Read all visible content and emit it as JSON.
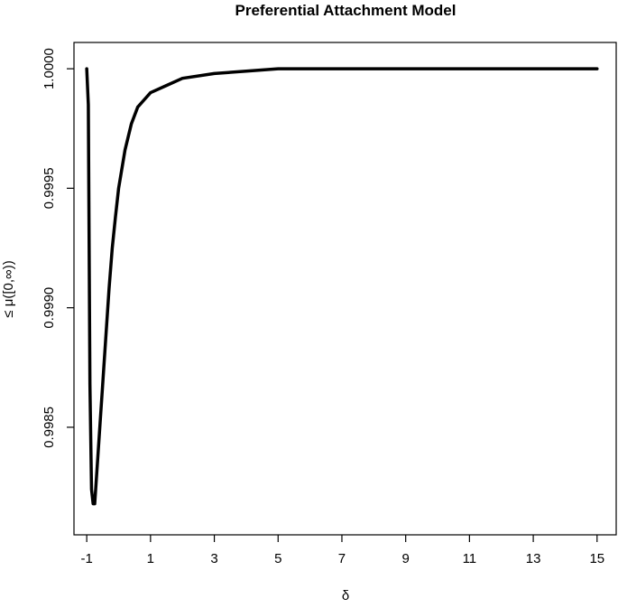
{
  "chart_data": {
    "type": "line",
    "title": "Preferential Attachment Model",
    "xlabel": "δ",
    "ylabel": "≤ μ([0,∞))",
    "xlim": [
      -1.4,
      15.6
    ],
    "ylim": [
      0.99805,
      1.00011
    ],
    "x_ticks": [
      -1,
      1,
      3,
      5,
      7,
      9,
      11,
      13,
      15
    ],
    "x_tick_labels": [
      "-1",
      "1",
      "3",
      "5",
      "7",
      "9",
      "11",
      "13",
      "15"
    ],
    "y_ticks": [
      0.9985,
      0.999,
      0.9995,
      1.0
    ],
    "y_tick_labels": [
      "0.9985",
      "0.9990",
      "0.9995",
      "1.0000"
    ],
    "grid": false,
    "legend": "none",
    "line_color": "#000000",
    "series": [
      {
        "x": [
          -1.0,
          -0.95,
          -0.9,
          -0.85,
          -0.8,
          -0.75,
          -0.7,
          -0.6,
          -0.5,
          -0.4,
          -0.3,
          -0.2,
          -0.1,
          0.0,
          0.2,
          0.4,
          0.6,
          0.8,
          1.0,
          1.5,
          2.0,
          3.0,
          4.0,
          5.0,
          7.0,
          9.0,
          11.0,
          13.0,
          15.0
        ],
        "y": [
          1.0,
          0.99985,
          0.99868,
          0.99824,
          0.99818,
          0.99818,
          0.99828,
          0.99848,
          0.99868,
          0.99888,
          0.99908,
          0.99925,
          0.99938,
          0.9995,
          0.99966,
          0.99977,
          0.99984,
          0.99987,
          0.9999,
          0.99993,
          0.99996,
          0.99998,
          0.99999,
          1.0,
          1.0,
          1.0,
          1.0,
          1.0,
          1.0
        ]
      }
    ]
  }
}
